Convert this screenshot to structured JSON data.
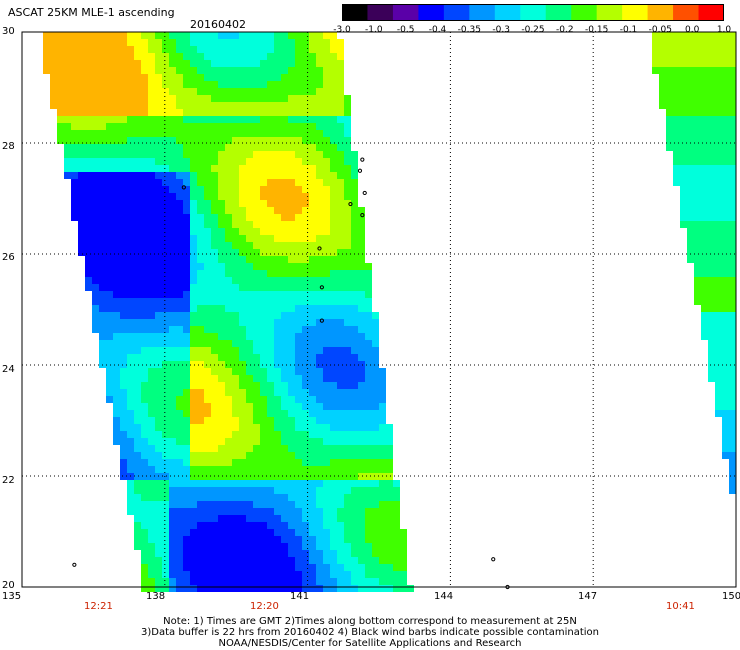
{
  "header": {
    "title": "ASCAT 25KM MLE-1 ascending",
    "date": "20160402"
  },
  "colorbar": {
    "colors": [
      "#000000",
      "#3b0059",
      "#5a00a8",
      "#0000ff",
      "#0046ff",
      "#0096ff",
      "#00d2ff",
      "#00ffdc",
      "#00ff80",
      "#40ff00",
      "#b4ff00",
      "#ffff00",
      "#ffb400",
      "#ff5000",
      "#ff0000"
    ],
    "labels": [
      "-3.0",
      "-1.0",
      "-0.5",
      "-0.4",
      "-0.35",
      "-0.3",
      "-0.25",
      "-0.2",
      "-0.15",
      "-0.1",
      "-0.05",
      "0.0",
      "1.0"
    ]
  },
  "map": {
    "lon_range": [
      135,
      150
    ],
    "lat_range": [
      20,
      30
    ],
    "lon_ticks": [
      "135",
      "138",
      "141",
      "144",
      "147",
      "150"
    ],
    "lat_ticks": [
      "20",
      "22",
      "24",
      "26",
      "28",
      "30"
    ],
    "grid": true
  },
  "times": [
    "12:21",
    "12:20",
    "10:41"
  ],
  "notes": {
    "line1": "Note: 1) Times are GMT 2)Times along bottom correspond to measurement at 25N",
    "line2": "3)Data buffer is 22 hrs from 20160402 4) Black wind barbs indicate possible contamination",
    "line3": "NOAA/NESDIS/Center for Satellite Applications and Research"
  },
  "colors": {
    "time_text": "#cc2200"
  }
}
